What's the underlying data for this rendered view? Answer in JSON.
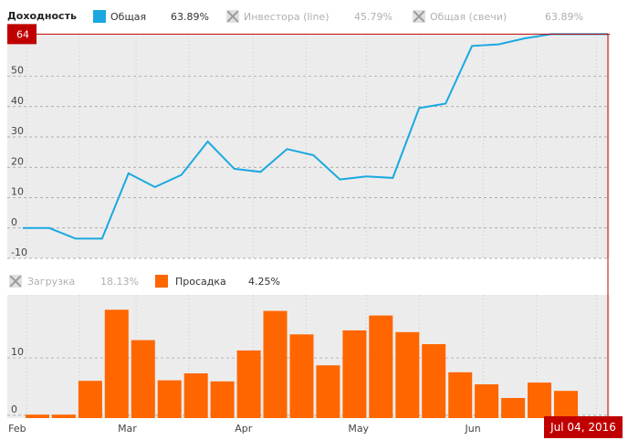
{
  "legend_top": {
    "title": "Доходность",
    "items": [
      {
        "label": "Общая",
        "value": "63.89%",
        "color": "#1aa8e0",
        "active": true
      },
      {
        "label": "Инвестора (line)",
        "value": "45.79%",
        "active": false
      },
      {
        "label": "Общая (свечи)",
        "value": "63.89%",
        "active": false
      }
    ]
  },
  "legend_bottom": {
    "items": [
      {
        "label": "Загрузка",
        "value": "18.13%",
        "active": false
      },
      {
        "label": "Просадка",
        "value": "4.25%",
        "color": "#ff6600",
        "active": true
      }
    ]
  },
  "crosshair": {
    "y_label": "64",
    "x_label": "Jul 04, 2016"
  },
  "colors": {
    "line": "#1aa8e0",
    "bar": "#ff6600",
    "crosshair": "#c00000",
    "plot_bg": "#ececec"
  },
  "chart_data": [
    {
      "type": "line",
      "series": [
        {
          "name": "Общая",
          "x": [
            "2016-01-31",
            "2016-02-07",
            "2016-02-14",
            "2016-02-21",
            "2016-02-28",
            "2016-03-06",
            "2016-03-13",
            "2016-03-20",
            "2016-03-27",
            "2016-04-03",
            "2016-04-10",
            "2016-04-17",
            "2016-04-24",
            "2016-05-01",
            "2016-05-08",
            "2016-05-15",
            "2016-05-22",
            "2016-05-29",
            "2016-06-05",
            "2016-06-12",
            "2016-06-19",
            "2016-06-26",
            "2016-07-04"
          ],
          "values": [
            0,
            0,
            -3.5,
            -3.5,
            18,
            13.5,
            17.5,
            28.5,
            19.5,
            18.5,
            26,
            24,
            16,
            17,
            16.5,
            39.5,
            41,
            60,
            60.5,
            62.5,
            63.89,
            63.89,
            63.89
          ]
        }
      ],
      "y_ticks": [
        "-10",
        "0",
        "10",
        "20",
        "30",
        "40",
        "50"
      ],
      "ylim": [
        -10,
        64
      ]
    },
    {
      "type": "bar",
      "series": [
        {
          "name": "Просадка",
          "x": [
            "2016-01-31",
            "2016-02-07",
            "2016-02-14",
            "2016-02-21",
            "2016-02-28",
            "2016-03-06",
            "2016-03-13",
            "2016-03-20",
            "2016-03-27",
            "2016-04-03",
            "2016-04-10",
            "2016-04-17",
            "2016-04-24",
            "2016-05-01",
            "2016-05-08",
            "2016-05-15",
            "2016-05-22",
            "2016-05-29",
            "2016-06-05",
            "2016-06-12",
            "2016-06-19"
          ],
          "values": [
            0.1,
            0.1,
            6,
            18.4,
            13.1,
            6.1,
            7.3,
            5.9,
            11.3,
            18.2,
            14.1,
            8.7,
            14.8,
            17.4,
            14.5,
            12.4,
            7.5,
            5.4,
            3,
            5.7,
            4.25
          ]
        }
      ],
      "y_ticks": [
        "0",
        "10"
      ],
      "x_ticks": [
        "Feb",
        "Mar",
        "Apr",
        "May",
        "Jun"
      ],
      "ylim": [
        -0.5,
        21
      ]
    }
  ]
}
